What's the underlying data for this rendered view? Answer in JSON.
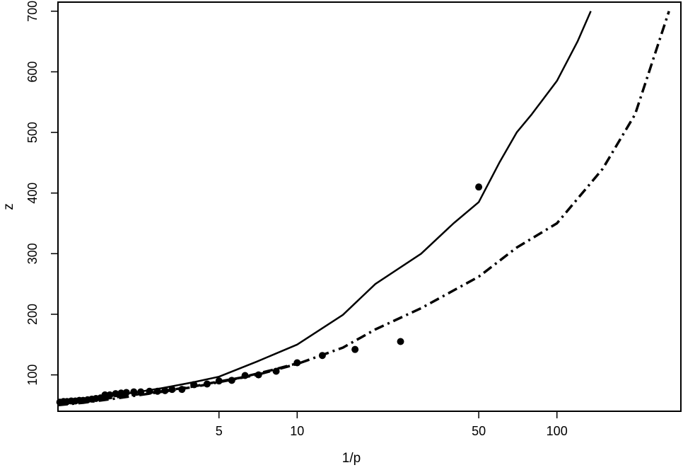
{
  "chart_data": {
    "type": "scatter",
    "title": "",
    "xlabel": "1/p",
    "ylabel": "z",
    "x_scale": "log",
    "xlim": [
      1.2,
      300
    ],
    "ylim": [
      40,
      715
    ],
    "x_ticks": [
      {
        "value": 5,
        "label": "5"
      },
      {
        "value": 10,
        "label": "10"
      },
      {
        "value": 50,
        "label": "50"
      },
      {
        "value": 100,
        "label": "100"
      }
    ],
    "y_ticks": [
      {
        "value": 100,
        "label": "100"
      },
      {
        "value": 200,
        "label": "200"
      },
      {
        "value": 300,
        "label": "300"
      },
      {
        "value": 400,
        "label": "400"
      },
      {
        "value": 500,
        "label": "500"
      },
      {
        "value": 600,
        "label": "600"
      },
      {
        "value": 700,
        "label": "700"
      }
    ],
    "grid": false,
    "legend": null,
    "series": [
      {
        "style": "points",
        "x": [
          1.22,
          1.26,
          1.3,
          1.35,
          1.4,
          1.45,
          1.5,
          1.56,
          1.62,
          1.68,
          1.75,
          1.82,
          1.9,
          2.0,
          2.1,
          2.2,
          2.35,
          2.5,
          2.7,
          2.9,
          3.1,
          3.3,
          3.6,
          4.0,
          4.5,
          5.0,
          5.6,
          6.3,
          7.1,
          8.3,
          10.0,
          12.5,
          16.7,
          25.0,
          50.0
        ],
        "y": [
          55,
          56,
          56,
          57,
          57,
          58,
          58,
          59,
          60,
          61,
          62,
          67,
          67,
          69,
          70,
          71,
          72,
          72,
          73,
          73,
          74,
          76,
          76,
          84,
          85,
          90,
          91,
          99,
          100,
          106,
          120,
          132,
          142,
          155,
          410
        ]
      },
      {
        "style": "solid",
        "x": [
          1.2,
          1.5,
          2,
          3,
          4,
          5,
          7,
          10,
          15,
          20,
          30,
          40,
          50,
          60,
          70,
          80,
          100,
          120,
          135
        ],
        "y": [
          52,
          58,
          66,
          78,
          88,
          97,
          122,
          150,
          199,
          250,
          300,
          350,
          385,
          450,
          500,
          530,
          585,
          650,
          700
        ]
      },
      {
        "style": "dashed",
        "x": [
          1.2,
          1.5,
          2,
          3,
          4,
          5,
          6,
          8,
          10
        ],
        "y": [
          52,
          56,
          63,
          73,
          81,
          89,
          95,
          108,
          119
        ]
      },
      {
        "style": "dashdot",
        "x": [
          1.2,
          1.5,
          2,
          3,
          4,
          5,
          7,
          10,
          15,
          20,
          30,
          50,
          70,
          100,
          150,
          200,
          270
        ],
        "y": [
          50,
          54,
          61,
          72,
          80,
          88,
          100,
          118,
          145,
          175,
          210,
          262,
          310,
          350,
          440,
          530,
          700
        ]
      }
    ]
  }
}
